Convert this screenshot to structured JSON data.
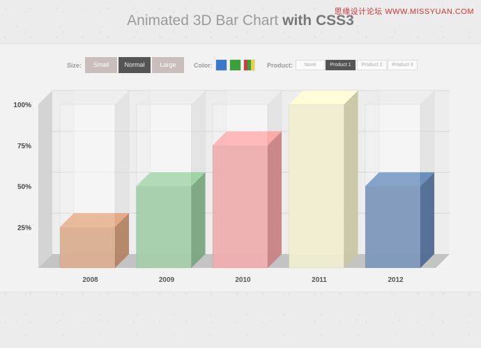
{
  "watermark": "思缘设计论坛 WWW.MISSYUAN.COM",
  "title": {
    "light": "Animated 3D Bar Chart",
    "bold": "with CSS3"
  },
  "controls": {
    "size_label": "Size:",
    "sizes": [
      "Small",
      "Normal",
      "Large"
    ],
    "active_size": "Normal",
    "color_label": "Color:",
    "colors": [
      "#3a78c9",
      "#3aa03a",
      "#c84040"
    ],
    "product_label": "Product:",
    "products": [
      "None",
      "Product 1",
      "Product 2",
      "Product 3"
    ],
    "active_product": "Product 1"
  },
  "chart_data": {
    "type": "bar",
    "title": "",
    "xlabel": "",
    "ylabel": "",
    "ylim": [
      0,
      100
    ],
    "y_ticks": [
      "100%",
      "75%",
      "50%",
      "25%"
    ],
    "categories": [
      "2008",
      "2009",
      "2010",
      "2011",
      "2012"
    ],
    "values": [
      25,
      50,
      75,
      100,
      50
    ],
    "colors": [
      "#d39a77",
      "#8fc296",
      "#eb9a9c",
      "#eeeac5",
      "#5d7fab"
    ]
  }
}
